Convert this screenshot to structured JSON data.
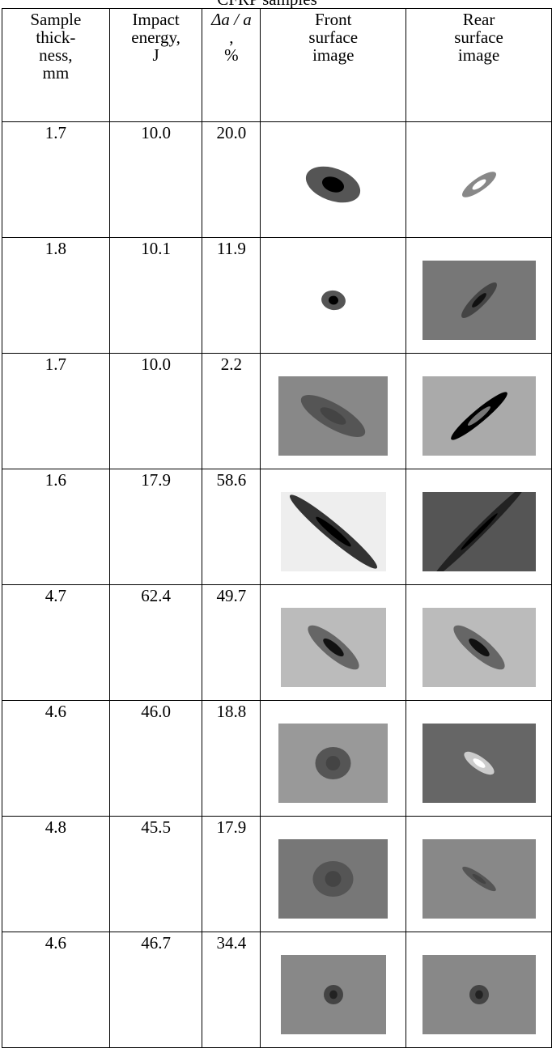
{
  "title": "CFRP samples",
  "table": {
    "header": [
      [
        "Sample",
        "thick-",
        "ness,",
        "mm"
      ],
      [
        "Impact",
        "energy,",
        "J"
      ],
      [
        "Δa / a",
        ",",
        "%"
      ],
      [
        "Front",
        "surface",
        "image"
      ],
      [
        "Rear",
        "surface",
        "image"
      ]
    ],
    "rows": [
      [
        "1.7",
        "10.0",
        "20.0"
      ],
      [
        "1.8",
        "10.1",
        "11.9"
      ],
      [
        "1.7",
        "10.0",
        "2.2"
      ],
      [
        "1.6",
        "17.9",
        "58.6"
      ],
      [
        "4.7",
        "62.4",
        "49.7"
      ],
      [
        "4.6",
        "46.0",
        "18.8"
      ],
      [
        "4.8",
        "45.5",
        "17.9"
      ],
      [
        "4.6",
        "46.7",
        "34.4"
      ]
    ]
  }
}
